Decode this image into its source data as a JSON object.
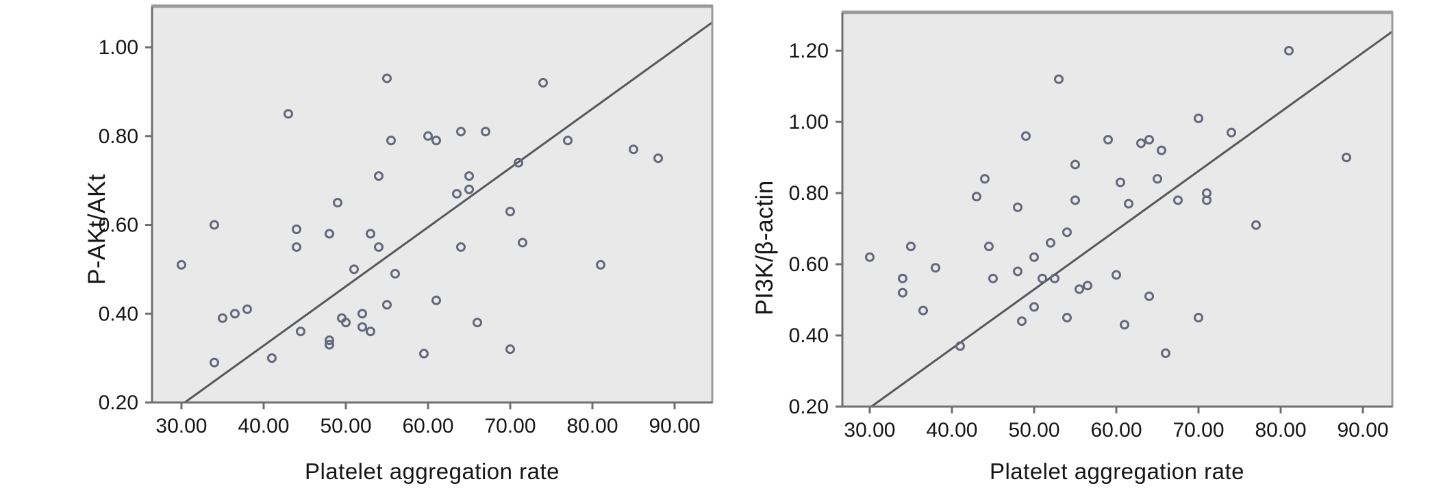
{
  "styles": {
    "background": "#ffffff",
    "plot_bg": "#eae9e9",
    "marker_color": "#63677b",
    "fit_line_color": "#57575b",
    "frame_color": "#9a9a9a",
    "axis_color": "#6f6f6f",
    "tick_text_color": "#161616"
  },
  "chart_data": [
    {
      "type": "scatter",
      "title": "",
      "xlabel": "Platelet aggregation rate",
      "ylabel": "P-AKt/AKt",
      "xlim": [
        26.42,
        94.58
      ],
      "ylim": [
        0.2,
        1.091
      ],
      "grid": false,
      "legend": null,
      "xticks": [
        30,
        40,
        50,
        60,
        70,
        80,
        90
      ],
      "xtick_labels": [
        "30.00",
        "40.00",
        "50.00",
        "60.00",
        "70.00",
        "80.00",
        "90.00"
      ],
      "yticks": [
        0.2,
        0.4,
        0.6,
        0.8,
        1.0
      ],
      "ytick_labels": [
        "0.20",
        "0.40",
        "0.60",
        "0.80",
        "1.00"
      ],
      "fit_line": {
        "x1": 30.4,
        "y1": 0.2,
        "x2": 94.58,
        "y2": 1.056
      },
      "points": [
        [
          30,
          0.51
        ],
        [
          34,
          0.6
        ],
        [
          34,
          0.29
        ],
        [
          35,
          0.39
        ],
        [
          36.5,
          0.4
        ],
        [
          38,
          0.41
        ],
        [
          41,
          0.3
        ],
        [
          43,
          0.85
        ],
        [
          44,
          0.59
        ],
        [
          44,
          0.55
        ],
        [
          44.5,
          0.36
        ],
        [
          48,
          0.58
        ],
        [
          48,
          0.34
        ],
        [
          48,
          0.33
        ],
        [
          49,
          0.65
        ],
        [
          49.5,
          0.39
        ],
        [
          50,
          0.38
        ],
        [
          51,
          0.5
        ],
        [
          52,
          0.4
        ],
        [
          52,
          0.37
        ],
        [
          53,
          0.58
        ],
        [
          53,
          0.36
        ],
        [
          54,
          0.55
        ],
        [
          54,
          0.71
        ],
        [
          55,
          0.93
        ],
        [
          55.5,
          0.79
        ],
        [
          55,
          0.42
        ],
        [
          56,
          0.49
        ],
        [
          59.5,
          0.31
        ],
        [
          60,
          0.8
        ],
        [
          61,
          0.79
        ],
        [
          61,
          0.43
        ],
        [
          63.5,
          0.67
        ],
        [
          64,
          0.81
        ],
        [
          64,
          0.55
        ],
        [
          65,
          0.68
        ],
        [
          65,
          0.71
        ],
        [
          66,
          0.38
        ],
        [
          67,
          0.81
        ],
        [
          70,
          0.63
        ],
        [
          70,
          0.32
        ],
        [
          71,
          0.74
        ],
        [
          71.5,
          0.56
        ],
        [
          74,
          0.92
        ],
        [
          77,
          0.79
        ],
        [
          81,
          0.51
        ],
        [
          85,
          0.77
        ],
        [
          88,
          0.75
        ]
      ]
    },
    {
      "type": "scatter",
      "title": "",
      "xlabel": "Platelet aggregation rate",
      "ylabel": "PI3K/β-actin",
      "xlim": [
        26.67,
        93.58
      ],
      "ylim": [
        0.2,
        1.306
      ],
      "grid": false,
      "legend": null,
      "xticks": [
        30,
        40,
        50,
        60,
        70,
        80,
        90
      ],
      "xtick_labels": [
        "30.00",
        "40.00",
        "50.00",
        "60.00",
        "70.00",
        "80.00",
        "90.00"
      ],
      "yticks": [
        0.2,
        0.4,
        0.6,
        0.8,
        1.0,
        1.2
      ],
      "ytick_labels": [
        "0.20",
        "0.40",
        "0.60",
        "0.80",
        "1.00",
        "1.20"
      ],
      "fit_line": {
        "x1": 30.2,
        "y1": 0.2,
        "x2": 93.58,
        "y2": 1.254
      },
      "points": [
        [
          30,
          0.62
        ],
        [
          34,
          0.56
        ],
        [
          34,
          0.52
        ],
        [
          35,
          0.65
        ],
        [
          36.5,
          0.47
        ],
        [
          38,
          0.59
        ],
        [
          41,
          0.37
        ],
        [
          43,
          0.79
        ],
        [
          44,
          0.84
        ],
        [
          44.5,
          0.65
        ],
        [
          45,
          0.56
        ],
        [
          48,
          0.76
        ],
        [
          48,
          0.58
        ],
        [
          48.5,
          0.44
        ],
        [
          49,
          0.96
        ],
        [
          50,
          0.62
        ],
        [
          50,
          0.48
        ],
        [
          51,
          0.56
        ],
        [
          52,
          0.66
        ],
        [
          52.5,
          0.56
        ],
        [
          53,
          1.12
        ],
        [
          54,
          0.69
        ],
        [
          54,
          0.45
        ],
        [
          55,
          0.88
        ],
        [
          55,
          0.78
        ],
        [
          55.5,
          0.53
        ],
        [
          56.5,
          0.54
        ],
        [
          59,
          0.95
        ],
        [
          60,
          0.57
        ],
        [
          60.5,
          0.83
        ],
        [
          61.5,
          0.77
        ],
        [
          61,
          0.43
        ],
        [
          63,
          0.94
        ],
        [
          64,
          0.95
        ],
        [
          64,
          0.51
        ],
        [
          65,
          0.84
        ],
        [
          65.5,
          0.92
        ],
        [
          66,
          0.35
        ],
        [
          67.5,
          0.78
        ],
        [
          70,
          1.01
        ],
        [
          70,
          0.45
        ],
        [
          71,
          0.8
        ],
        [
          71,
          0.78
        ],
        [
          74,
          0.97
        ],
        [
          77,
          0.71
        ],
        [
          81,
          1.2
        ],
        [
          88,
          0.9
        ]
      ]
    }
  ]
}
